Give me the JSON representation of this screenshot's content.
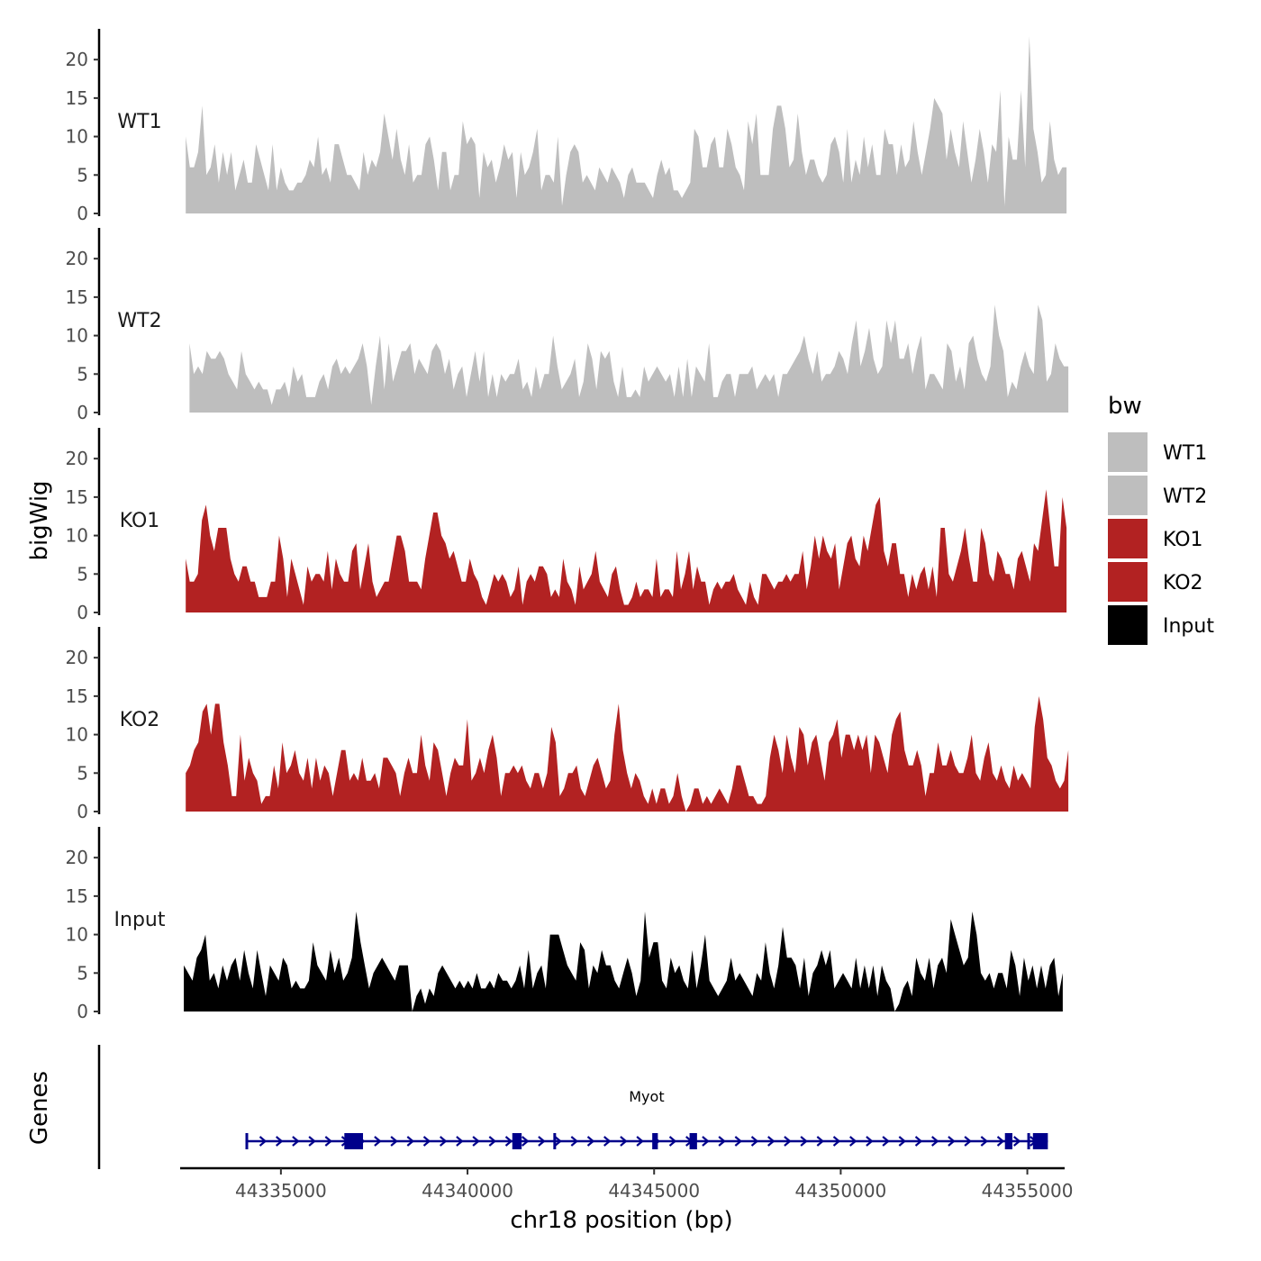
{
  "chart_data": {
    "type": "area",
    "chromosome": "chr18",
    "xlabel": "chr18 position (bp)",
    "ylabel": "bigWig",
    "gene_panel_label": "Genes",
    "xlim": [
      44332300,
      44356000
    ],
    "x_ticks": [
      44335000,
      44340000,
      44345000,
      44350000,
      44355000
    ],
    "ylim": [
      0,
      24
    ],
    "y_ticks": [
      0,
      5,
      10,
      15,
      20
    ],
    "legend": {
      "title": "bw",
      "entries": [
        {
          "name": "WT1",
          "color": "#bebebe"
        },
        {
          "name": "WT2",
          "color": "#bebebe"
        },
        {
          "name": "KO1",
          "color": "#b22222"
        },
        {
          "name": "KO2",
          "color": "#b22222"
        },
        {
          "name": "Input",
          "color": "#000000"
        }
      ]
    },
    "series": [
      {
        "name": "WT1",
        "color": "#bebebe",
        "x_start": 44332450,
        "x_end": 44356050,
        "values": [
          10,
          6,
          6,
          8,
          14,
          5,
          6,
          9,
          4,
          8,
          5,
          8,
          3,
          5,
          7,
          4,
          4,
          9,
          7,
          5,
          3,
          9,
          3,
          6,
          4,
          3,
          3,
          4,
          4,
          5,
          7,
          6,
          10,
          5,
          6,
          4,
          9,
          9,
          7,
          5,
          5,
          4,
          3,
          8,
          5,
          7,
          6,
          8,
          13,
          10,
          7,
          11,
          7,
          5,
          9,
          4,
          5,
          5,
          9,
          10,
          7,
          3,
          8,
          8,
          3,
          5,
          5,
          12,
          9,
          10,
          9,
          2,
          8,
          6,
          7,
          4,
          6,
          9,
          7,
          8,
          2,
          8,
          5,
          6,
          8,
          11,
          3,
          5,
          5,
          4,
          10,
          1,
          5,
          8,
          9,
          8,
          4,
          5,
          4,
          3,
          6,
          5,
          4,
          6,
          5,
          4,
          2,
          5,
          6,
          4,
          4,
          4,
          3,
          2,
          5,
          7,
          5,
          6,
          3,
          3,
          2,
          3,
          4,
          11,
          10,
          6,
          6,
          9,
          10,
          6,
          6,
          11,
          9,
          6,
          5,
          3,
          12,
          9,
          13,
          5,
          5,
          5,
          11,
          14,
          14,
          11,
          6,
          7,
          13,
          8,
          5,
          7,
          7,
          5,
          4,
          5,
          9,
          10,
          8,
          4,
          11,
          4,
          7,
          5,
          10,
          6,
          9,
          5,
          5,
          11,
          9,
          9,
          5,
          9,
          6,
          7,
          12,
          8,
          5,
          8,
          11,
          15,
          14,
          13,
          7,
          11,
          8,
          6,
          12,
          8,
          4,
          7,
          11,
          8,
          4,
          9,
          8,
          16,
          1,
          10,
          7,
          7,
          16,
          6,
          23,
          11,
          8,
          4,
          5,
          12,
          7,
          5,
          6,
          6
        ]
      },
      {
        "name": "WT2",
        "color": "#bebebe",
        "x_start": 44332550,
        "x_end": 44356100,
        "values": [
          9,
          5,
          6,
          5,
          8,
          7,
          7,
          8,
          7,
          5,
          4,
          3,
          8,
          5,
          4,
          3,
          4,
          3,
          3,
          1,
          3,
          3,
          4,
          2,
          6,
          4,
          5,
          2,
          2,
          2,
          4,
          5,
          3,
          6,
          7,
          5,
          6,
          5,
          6,
          7,
          9,
          6,
          1,
          6,
          10,
          3,
          9,
          4,
          6,
          8,
          8,
          9,
          5,
          7,
          6,
          5,
          8,
          9,
          8,
          5,
          7,
          3,
          5,
          6,
          2,
          5,
          8,
          4,
          8,
          2,
          5,
          2,
          5,
          4,
          5,
          5,
          7,
          3,
          4,
          2,
          6,
          3,
          5,
          5,
          10,
          6,
          3,
          4,
          5,
          7,
          2,
          4,
          9,
          7,
          3,
          8,
          7,
          8,
          4,
          2,
          6,
          2,
          2,
          3,
          2,
          6,
          4,
          5,
          6,
          5,
          4,
          5,
          2,
          6,
          2,
          7,
          2,
          6,
          5,
          4,
          9,
          2,
          2,
          4,
          5,
          5,
          2,
          5,
          5,
          5,
          6,
          3,
          4,
          5,
          4,
          5,
          2,
          5,
          5,
          6,
          7,
          8,
          10,
          7,
          5,
          8,
          4,
          5,
          5,
          6,
          8,
          7,
          5,
          9,
          12,
          6,
          8,
          11,
          7,
          5,
          6,
          12,
          9,
          12,
          7,
          7,
          9,
          5,
          8,
          10,
          3,
          5,
          5,
          4,
          3,
          9,
          8,
          4,
          6,
          3,
          9,
          10,
          7,
          5,
          4,
          6,
          14,
          10,
          8,
          2,
          4,
          3,
          6,
          8,
          6,
          5,
          14,
          12,
          4,
          5,
          9,
          7,
          6,
          6
        ]
      },
      {
        "name": "KO1",
        "color": "#b22222",
        "x_start": 44332450,
        "x_end": 44356050,
        "values": [
          7,
          4,
          4,
          5,
          12,
          14,
          10,
          8,
          11,
          11,
          11,
          7,
          5,
          4,
          6,
          6,
          4,
          4,
          2,
          2,
          2,
          4,
          4,
          10,
          7,
          2,
          7,
          5,
          3,
          1,
          6,
          4,
          5,
          5,
          4,
          8,
          3,
          7,
          5,
          4,
          4,
          8,
          9,
          3,
          6,
          9,
          4,
          2,
          3,
          4,
          4,
          7,
          10,
          10,
          8,
          4,
          4,
          4,
          3,
          7,
          10,
          13,
          13,
          10,
          9,
          7,
          8,
          6,
          4,
          4,
          7,
          5,
          4,
          2,
          1,
          3,
          5,
          4,
          5,
          4,
          2,
          3,
          6,
          1,
          4,
          5,
          4,
          6,
          6,
          5,
          2,
          3,
          2,
          7,
          4,
          3,
          1,
          6,
          3,
          4,
          5,
          8,
          4,
          3,
          2,
          5,
          6,
          3,
          1,
          1,
          2,
          4,
          2,
          3,
          3,
          2,
          7,
          2,
          3,
          3,
          2,
          8,
          3,
          5,
          8,
          3,
          6,
          4,
          4,
          1,
          3,
          4,
          3,
          4,
          4,
          5,
          3,
          2,
          1,
          4,
          2,
          1,
          5,
          5,
          4,
          3,
          4,
          4,
          5,
          4,
          5,
          5,
          8,
          3,
          6,
          10,
          7,
          10,
          8,
          7,
          9,
          3,
          6,
          9,
          10,
          7,
          6,
          10,
          8,
          11,
          14,
          15,
          8,
          6,
          9,
          9,
          5,
          5,
          2,
          5,
          3,
          5,
          6,
          3,
          6,
          2,
          11,
          11,
          5,
          4,
          6,
          8,
          11,
          7,
          4,
          4,
          11,
          9,
          5,
          4,
          8,
          7,
          5,
          5,
          3,
          7,
          8,
          6,
          4,
          9,
          8,
          12,
          16,
          11,
          6,
          6,
          15,
          11
        ]
      },
      {
        "name": "KO2",
        "color": "#b22222",
        "x_start": 44332450,
        "x_end": 44356100,
        "values": [
          5,
          6,
          8,
          9,
          13,
          14,
          10,
          14,
          14,
          9,
          6,
          2,
          2,
          10,
          4,
          7,
          5,
          4,
          1,
          2,
          2,
          6,
          3,
          9,
          5,
          6,
          8,
          5,
          4,
          7,
          3,
          7,
          4,
          6,
          5,
          2,
          5,
          8,
          8,
          4,
          5,
          4,
          7,
          4,
          4,
          5,
          3,
          7,
          7,
          6,
          5,
          2,
          5,
          7,
          5,
          5,
          10,
          6,
          4,
          9,
          8,
          5,
          2,
          5,
          7,
          6,
          6,
          12,
          4,
          5,
          7,
          5,
          8,
          10,
          7,
          2,
          5,
          5,
          6,
          5,
          6,
          4,
          3,
          5,
          5,
          3,
          5,
          11,
          9,
          2,
          3,
          5,
          5,
          6,
          3,
          2,
          4,
          6,
          7,
          5,
          3,
          4,
          10,
          14,
          8,
          5,
          3,
          5,
          4,
          2,
          1,
          3,
          1,
          3,
          3,
          1,
          2,
          5,
          2,
          0,
          1,
          3,
          3,
          1,
          2,
          1,
          2,
          3,
          2,
          1,
          3,
          6,
          6,
          4,
          2,
          2,
          1,
          1,
          2,
          7,
          10,
          8,
          5,
          10,
          7,
          5,
          11,
          10,
          6,
          9,
          10,
          7,
          4,
          9,
          10,
          12,
          7,
          10,
          10,
          8,
          10,
          8,
          10,
          5,
          10,
          9,
          7,
          5,
          10,
          12,
          13,
          8,
          6,
          6,
          8,
          6,
          2,
          5,
          5,
          9,
          6,
          6,
          8,
          6,
          5,
          5,
          7,
          10,
          5,
          4,
          7,
          9,
          5,
          4,
          6,
          4,
          3,
          6,
          4,
          5,
          4,
          3,
          11,
          15,
          12,
          7,
          6,
          4,
          3,
          4,
          8
        ]
      },
      {
        "name": "Input",
        "color": "#000000",
        "x_start": 44332400,
        "x_end": 44355950,
        "values": [
          6,
          5,
          4,
          7,
          8,
          10,
          4,
          5,
          3,
          6,
          4,
          6,
          7,
          4,
          8,
          5,
          3,
          8,
          5,
          2,
          6,
          5,
          4,
          7,
          6,
          3,
          4,
          3,
          3,
          4,
          9,
          6,
          5,
          4,
          8,
          5,
          7,
          4,
          5,
          7,
          13,
          9,
          6,
          3,
          5,
          6,
          7,
          6,
          5,
          4,
          6,
          6,
          6,
          0,
          2,
          3,
          1,
          3,
          2,
          5,
          6,
          5,
          4,
          3,
          4,
          3,
          4,
          3,
          5,
          3,
          3,
          4,
          3,
          5,
          4,
          4,
          3,
          4,
          6,
          3,
          8,
          3,
          5,
          6,
          3,
          10,
          10,
          10,
          8,
          6,
          5,
          4,
          9,
          8,
          3,
          6,
          5,
          8,
          6,
          6,
          4,
          3,
          5,
          7,
          5,
          2,
          4,
          13,
          7,
          9,
          9,
          4,
          3,
          7,
          5,
          6,
          4,
          3,
          8,
          3,
          6,
          10,
          4,
          3,
          2,
          3,
          4,
          7,
          4,
          5,
          4,
          3,
          2,
          5,
          4,
          9,
          5,
          3,
          6,
          11,
          7,
          7,
          6,
          3,
          7,
          2,
          5,
          6,
          8,
          6,
          8,
          3,
          4,
          5,
          4,
          3,
          7,
          3,
          6,
          3,
          6,
          2,
          6,
          4,
          3,
          0,
          1,
          3,
          4,
          2,
          7,
          5,
          4,
          7,
          3,
          6,
          7,
          5,
          12,
          10,
          8,
          6,
          7,
          13,
          10,
          5,
          4,
          5,
          3,
          5,
          5,
          3,
          8,
          6,
          2,
          7,
          4,
          6,
          3,
          6,
          3,
          6,
          7,
          2,
          5
        ]
      }
    ],
    "gene_track": {
      "name": "Myot",
      "color": "#00008b",
      "start": 44334050,
      "end": 44355550,
      "strand": "+",
      "exons": [
        [
          44334050,
          44334100
        ],
        [
          44336700,
          44337200
        ],
        [
          44341200,
          44341450
        ],
        [
          44342300,
          44342350
        ],
        [
          44344950,
          44345100
        ],
        [
          44345950,
          44346150
        ],
        [
          44354400,
          44354600
        ],
        [
          44355000,
          44355050
        ],
        [
          44355150,
          44355550
        ]
      ]
    }
  }
}
